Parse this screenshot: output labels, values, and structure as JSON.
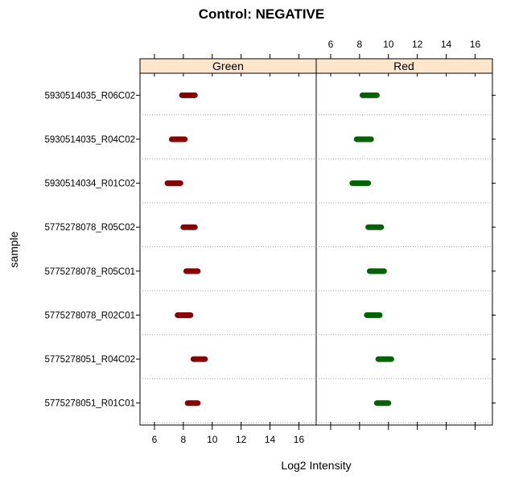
{
  "chart_data": {
    "type": "dotplot",
    "title": "Control: NEGATIVE",
    "xlabel": "Log2 Intensity",
    "ylabel": "sample",
    "xlim": [
      5,
      17.2
    ],
    "x_ticks": [
      6,
      8,
      10,
      12,
      14,
      16
    ],
    "grid": "dotted horizontal separators between samples",
    "panels": [
      {
        "name": "Green",
        "strip_color": "#FFE5CC",
        "mark_color": "#8B0000",
        "ranges": [
          [
            7.9,
            8.8
          ],
          [
            7.2,
            8.1
          ],
          [
            6.9,
            7.8
          ],
          [
            8.0,
            8.8
          ],
          [
            8.2,
            9.0
          ],
          [
            7.6,
            8.5
          ],
          [
            8.7,
            9.5
          ],
          [
            8.3,
            9.0
          ]
        ]
      },
      {
        "name": "Red",
        "strip_color": "#FFE5CC",
        "mark_color": "#006400",
        "ranges": [
          [
            8.2,
            9.2
          ],
          [
            7.8,
            8.8
          ],
          [
            7.5,
            8.6
          ],
          [
            8.6,
            9.5
          ],
          [
            8.7,
            9.7
          ],
          [
            8.5,
            9.4
          ],
          [
            9.3,
            10.2
          ],
          [
            9.2,
            10.0
          ]
        ]
      }
    ],
    "samples": [
      "5930514035_R06C02",
      "5930514035_R04C02",
      "5930514034_R01C02",
      "5775278078_R05C02",
      "5775278078_R05C01",
      "5775278078_R02C01",
      "5775278051_R04C02",
      "5775278051_R01C01"
    ]
  }
}
